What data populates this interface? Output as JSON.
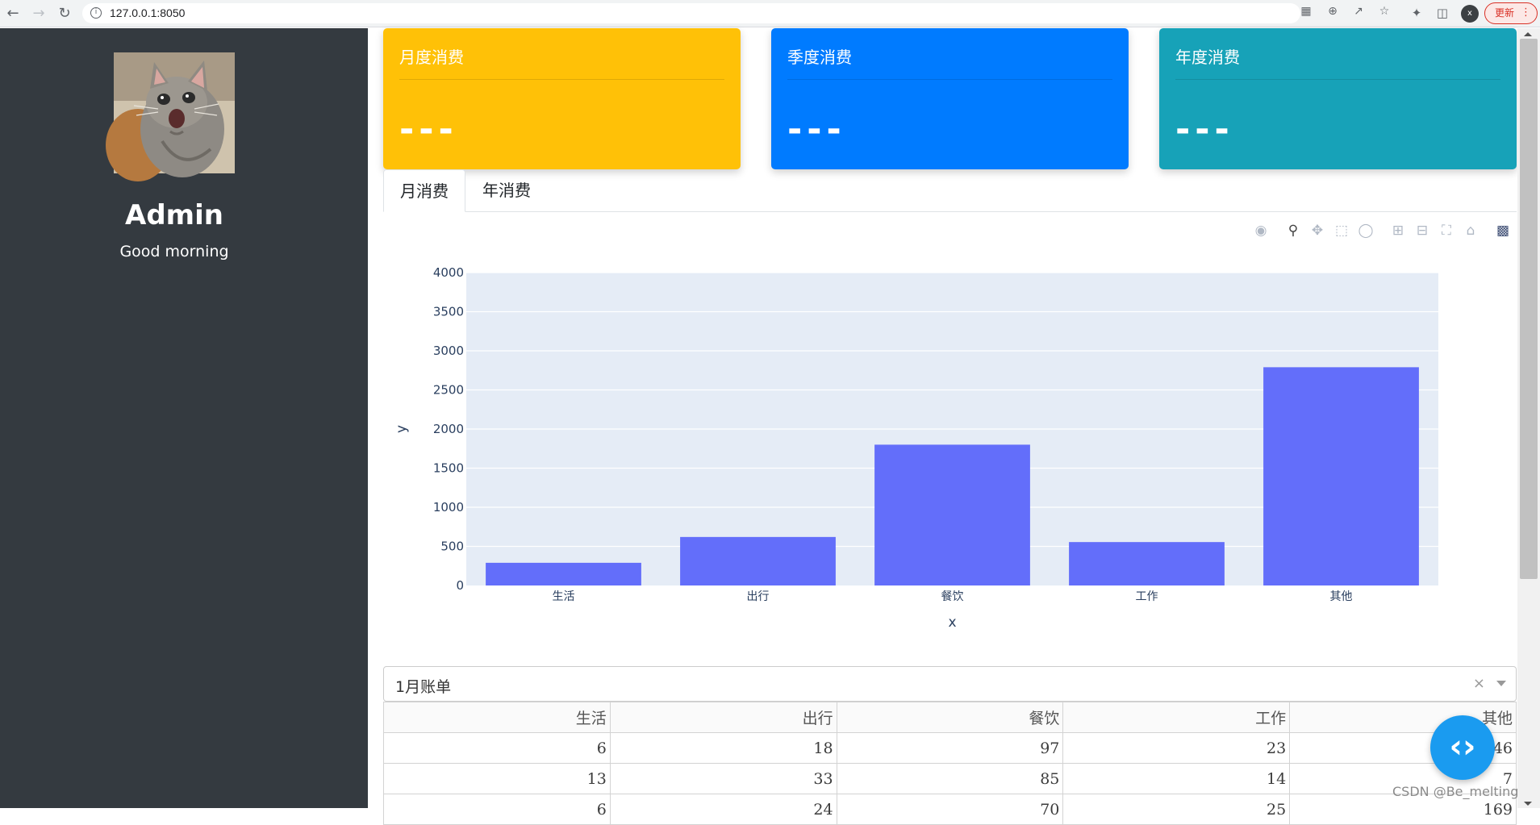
{
  "browser": {
    "url": "127.0.0.1:8050",
    "update_label": "更新",
    "profile_initial": "x"
  },
  "sidebar": {
    "name": "Admin",
    "greeting": "Good morning"
  },
  "cards": [
    {
      "title": "月度消费",
      "value": "---",
      "color": "#ffc107"
    },
    {
      "title": "季度消费",
      "value": "---",
      "color": "#007bff"
    },
    {
      "title": "年度消费",
      "value": "---",
      "color": "#17a2b8"
    }
  ],
  "tabs": [
    {
      "label": "月消费",
      "active": true
    },
    {
      "label": "年消费",
      "active": false
    }
  ],
  "chart_data": {
    "type": "bar",
    "categories": [
      "生活",
      "出行",
      "餐饮",
      "工作",
      "其他"
    ],
    "values": [
      290,
      620,
      1800,
      555,
      2790
    ],
    "xlabel": "x",
    "ylabel": "y",
    "ylim": [
      0,
      4000
    ],
    "yticks": [
      0,
      500,
      1000,
      1500,
      2000,
      2500,
      3000,
      3500,
      4000
    ],
    "bar_color": "#636efa",
    "plot_bg": "#e5ecf6",
    "grid": true
  },
  "dropdown": {
    "value": "1月账单",
    "clear": "×"
  },
  "table": {
    "headers": [
      "生活",
      "出行",
      "餐饮",
      "工作",
      "其他"
    ],
    "rows": [
      [
        "6",
        "18",
        "97",
        "23",
        "46"
      ],
      [
        "13",
        "33",
        "85",
        "14",
        "7"
      ],
      [
        "6",
        "24",
        "70",
        "25",
        "169"
      ]
    ]
  },
  "watermark": "CSDN @Be_melting"
}
